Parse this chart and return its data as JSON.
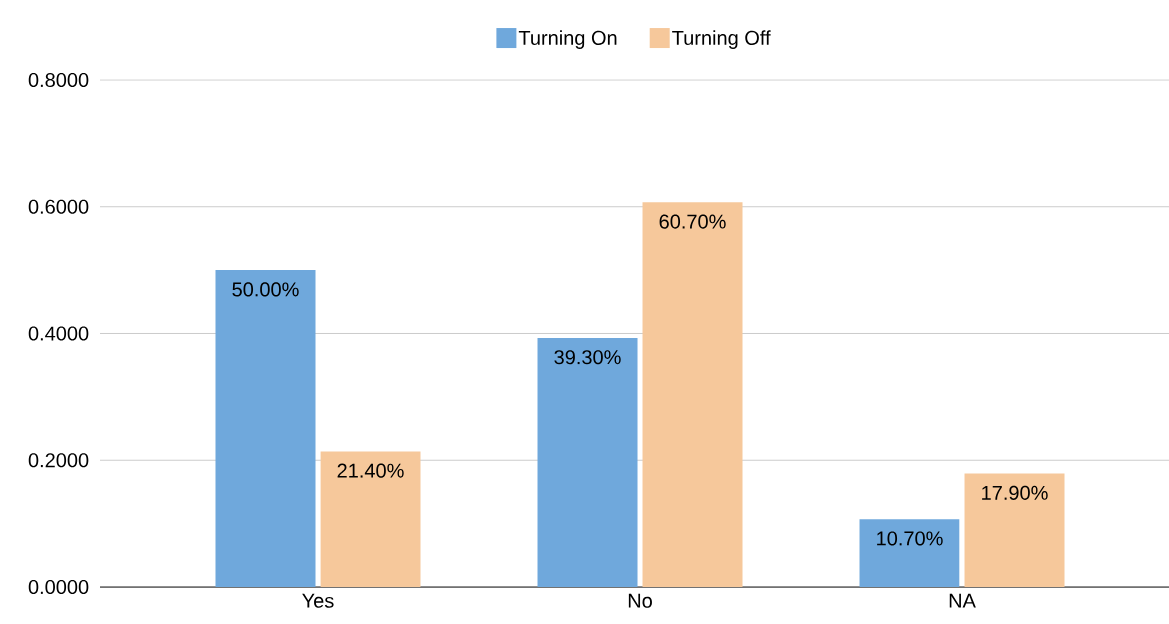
{
  "chart_data": {
    "type": "bar",
    "categories": [
      "Yes",
      "No",
      "NA"
    ],
    "series": [
      {
        "name": "Turning On",
        "color": "#6fa8dc",
        "values": [
          0.5,
          0.393,
          0.107
        ],
        "value_labels": [
          "50.00%",
          "39.30%",
          "10.70%"
        ]
      },
      {
        "name": "Turning Off",
        "color": "#f6c89b",
        "values": [
          0.214,
          0.607,
          0.179
        ],
        "value_labels": [
          "21.40%",
          "60.70%",
          "17.90%"
        ]
      }
    ],
    "ylim": [
      0,
      0.8
    ],
    "yticks": [
      {
        "value": 0,
        "label": "0.0000"
      },
      {
        "value": 0.2,
        "label": "0.2000"
      },
      {
        "value": 0.4,
        "label": "0.4000"
      },
      {
        "value": 0.6,
        "label": "0.6000"
      },
      {
        "value": 0.8,
        "label": "0.8000"
      }
    ],
    "grid": "y",
    "legend": "top"
  }
}
